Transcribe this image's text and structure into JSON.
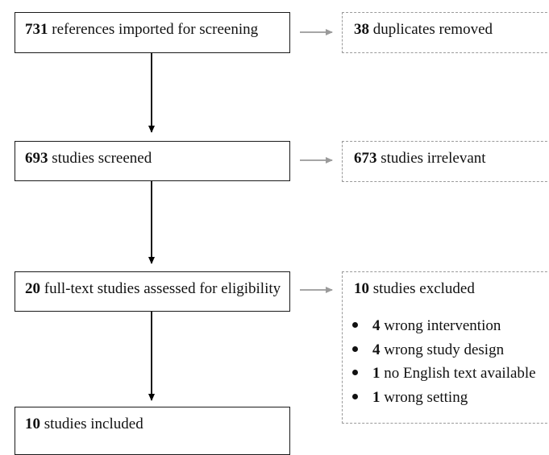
{
  "main_boxes": [
    {
      "count": "731",
      "text": " references imported for screening"
    },
    {
      "count": "693",
      "text": " studies screened"
    },
    {
      "count": "20",
      "text": " full-text studies assessed for eligibility"
    },
    {
      "count": "10",
      "text": " studies included"
    }
  ],
  "side_boxes": [
    {
      "count": "38",
      "text": " duplicates removed"
    },
    {
      "count": "673",
      "text": " studies irrelevant"
    },
    {
      "count": "10",
      "text": " studies excluded",
      "reasons": [
        {
          "count": "4",
          "text": " wrong intervention"
        },
        {
          "count": "4",
          "text": " wrong study design"
        },
        {
          "count": "1",
          "text": " no English text available"
        },
        {
          "count": "1",
          "text": " wrong setting"
        }
      ]
    }
  ],
  "colors": {
    "main_border": "#1a1a1a",
    "side_border": "#9a9a9a",
    "down_arrow": "#000000",
    "side_arrow": "#9a9a9a"
  }
}
